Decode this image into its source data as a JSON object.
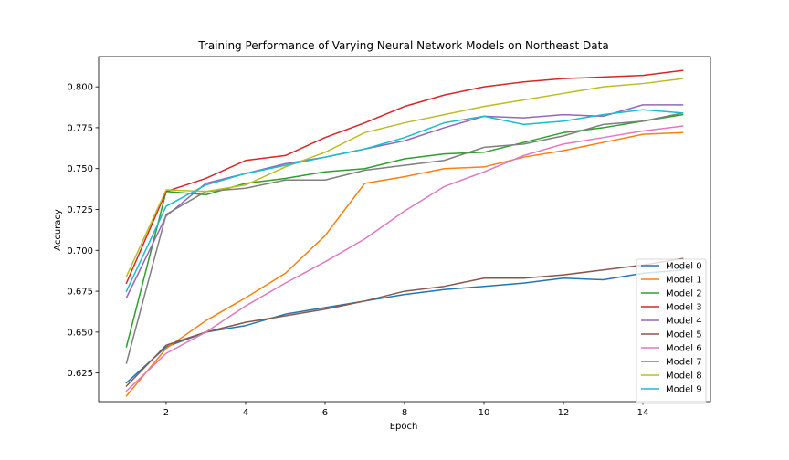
{
  "chart_data": {
    "type": "line",
    "title": "Training Performance of Varying Neural Network Models on Northeast Data",
    "xlabel": "Epoch",
    "ylabel": "Accuracy",
    "xlim": [
      0.3,
      15.7
    ],
    "ylim": [
      0.6075,
      0.8185
    ],
    "xticks": [
      2,
      4,
      6,
      8,
      10,
      12,
      14
    ],
    "yticks": [
      0.625,
      0.65,
      0.675,
      0.7,
      0.725,
      0.75,
      0.775,
      0.8
    ],
    "grid": false,
    "legend_position": "lower-right",
    "x": [
      1,
      2,
      3,
      4,
      5,
      6,
      7,
      8,
      9,
      10,
      11,
      12,
      13,
      14,
      15
    ],
    "series": [
      {
        "name": "Model 0",
        "color": "#1f77b4",
        "values": [
          0.619,
          0.641,
          0.65,
          0.654,
          0.661,
          0.665,
          0.669,
          0.673,
          0.676,
          0.678,
          0.68,
          0.683,
          0.682,
          0.686,
          0.688
        ]
      },
      {
        "name": "Model 1",
        "color": "#ff7f0e",
        "values": [
          0.611,
          0.64,
          0.657,
          0.671,
          0.686,
          0.709,
          0.741,
          0.745,
          0.75,
          0.751,
          0.757,
          0.761,
          0.766,
          0.771,
          0.772
        ]
      },
      {
        "name": "Model 2",
        "color": "#2ca02c",
        "values": [
          0.641,
          0.736,
          0.734,
          0.741,
          0.744,
          0.748,
          0.75,
          0.756,
          0.759,
          0.76,
          0.766,
          0.772,
          0.775,
          0.779,
          0.783
        ]
      },
      {
        "name": "Model 3",
        "color": "#d62728",
        "values": [
          0.68,
          0.736,
          0.744,
          0.755,
          0.758,
          0.769,
          0.778,
          0.788,
          0.795,
          0.8,
          0.803,
          0.805,
          0.806,
          0.807,
          0.81
        ]
      },
      {
        "name": "Model 4",
        "color": "#9467bd",
        "values": [
          0.671,
          0.721,
          0.741,
          0.747,
          0.753,
          0.757,
          0.762,
          0.767,
          0.775,
          0.782,
          0.781,
          0.783,
          0.782,
          0.789,
          0.789
        ]
      },
      {
        "name": "Model 5",
        "color": "#8c564b",
        "values": [
          0.617,
          0.642,
          0.65,
          0.656,
          0.66,
          0.664,
          0.669,
          0.675,
          0.678,
          0.683,
          0.683,
          0.685,
          0.688,
          0.691,
          0.695
        ]
      },
      {
        "name": "Model 6",
        "color": "#e377c2",
        "values": [
          0.614,
          0.637,
          0.65,
          0.666,
          0.68,
          0.693,
          0.707,
          0.724,
          0.739,
          0.748,
          0.758,
          0.765,
          0.769,
          0.773,
          0.776
        ]
      },
      {
        "name": "Model 7",
        "color": "#7f7f7f",
        "values": [
          0.631,
          0.722,
          0.736,
          0.738,
          0.743,
          0.743,
          0.749,
          0.752,
          0.755,
          0.763,
          0.765,
          0.77,
          0.777,
          0.779,
          0.784
        ]
      },
      {
        "name": "Model 8",
        "color": "#bcbd22",
        "values": [
          0.684,
          0.737,
          0.736,
          0.74,
          0.751,
          0.76,
          0.772,
          0.778,
          0.783,
          0.788,
          0.792,
          0.796,
          0.8,
          0.802,
          0.805
        ]
      },
      {
        "name": "Model 9",
        "color": "#17becf",
        "values": [
          0.675,
          0.727,
          0.74,
          0.747,
          0.752,
          0.757,
          0.762,
          0.769,
          0.778,
          0.782,
          0.777,
          0.779,
          0.783,
          0.786,
          0.784
        ]
      }
    ]
  }
}
